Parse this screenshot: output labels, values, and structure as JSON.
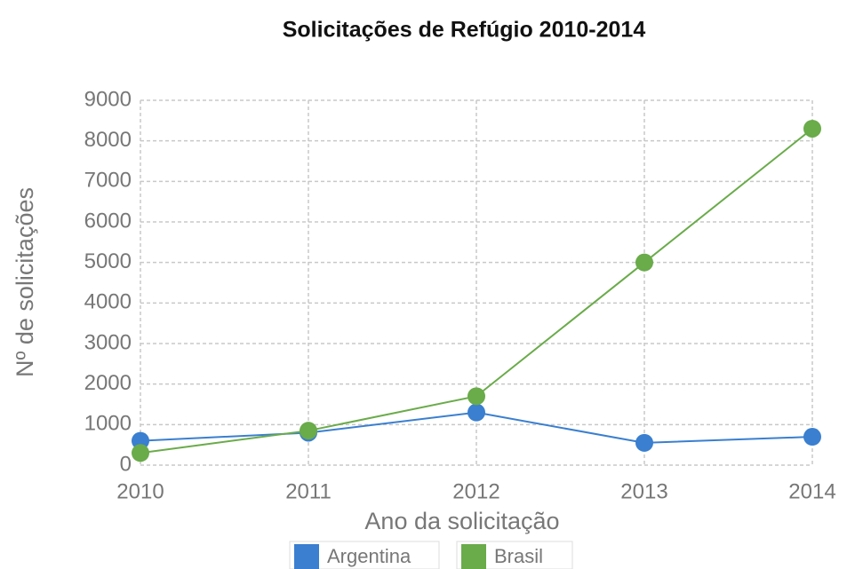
{
  "chart_data": {
    "type": "line",
    "title": "Solicitações de Refúgio 2010-2014",
    "x_label": "Ano da solicitação",
    "y_label": "Nº de solicitações",
    "x": [
      2010,
      2011,
      2012,
      2013,
      2014
    ],
    "series": [
      {
        "name": "Argentina",
        "color": "#3a7fd0",
        "values": [
          600,
          800,
          1300,
          550,
          700
        ]
      },
      {
        "name": "Brasil",
        "color": "#6aab4a",
        "values": [
          300,
          850,
          1700,
          5000,
          8300
        ]
      }
    ],
    "xlim": [
      2010,
      2014
    ],
    "xticks": [
      2010,
      2011,
      2012,
      2013,
      2014
    ],
    "ylim": [
      0,
      9000
    ],
    "yticks": [
      0,
      1000,
      2000,
      3000,
      4000,
      5000,
      6000,
      7000,
      8000,
      9000
    ],
    "grid": true,
    "legend": "bottom"
  }
}
